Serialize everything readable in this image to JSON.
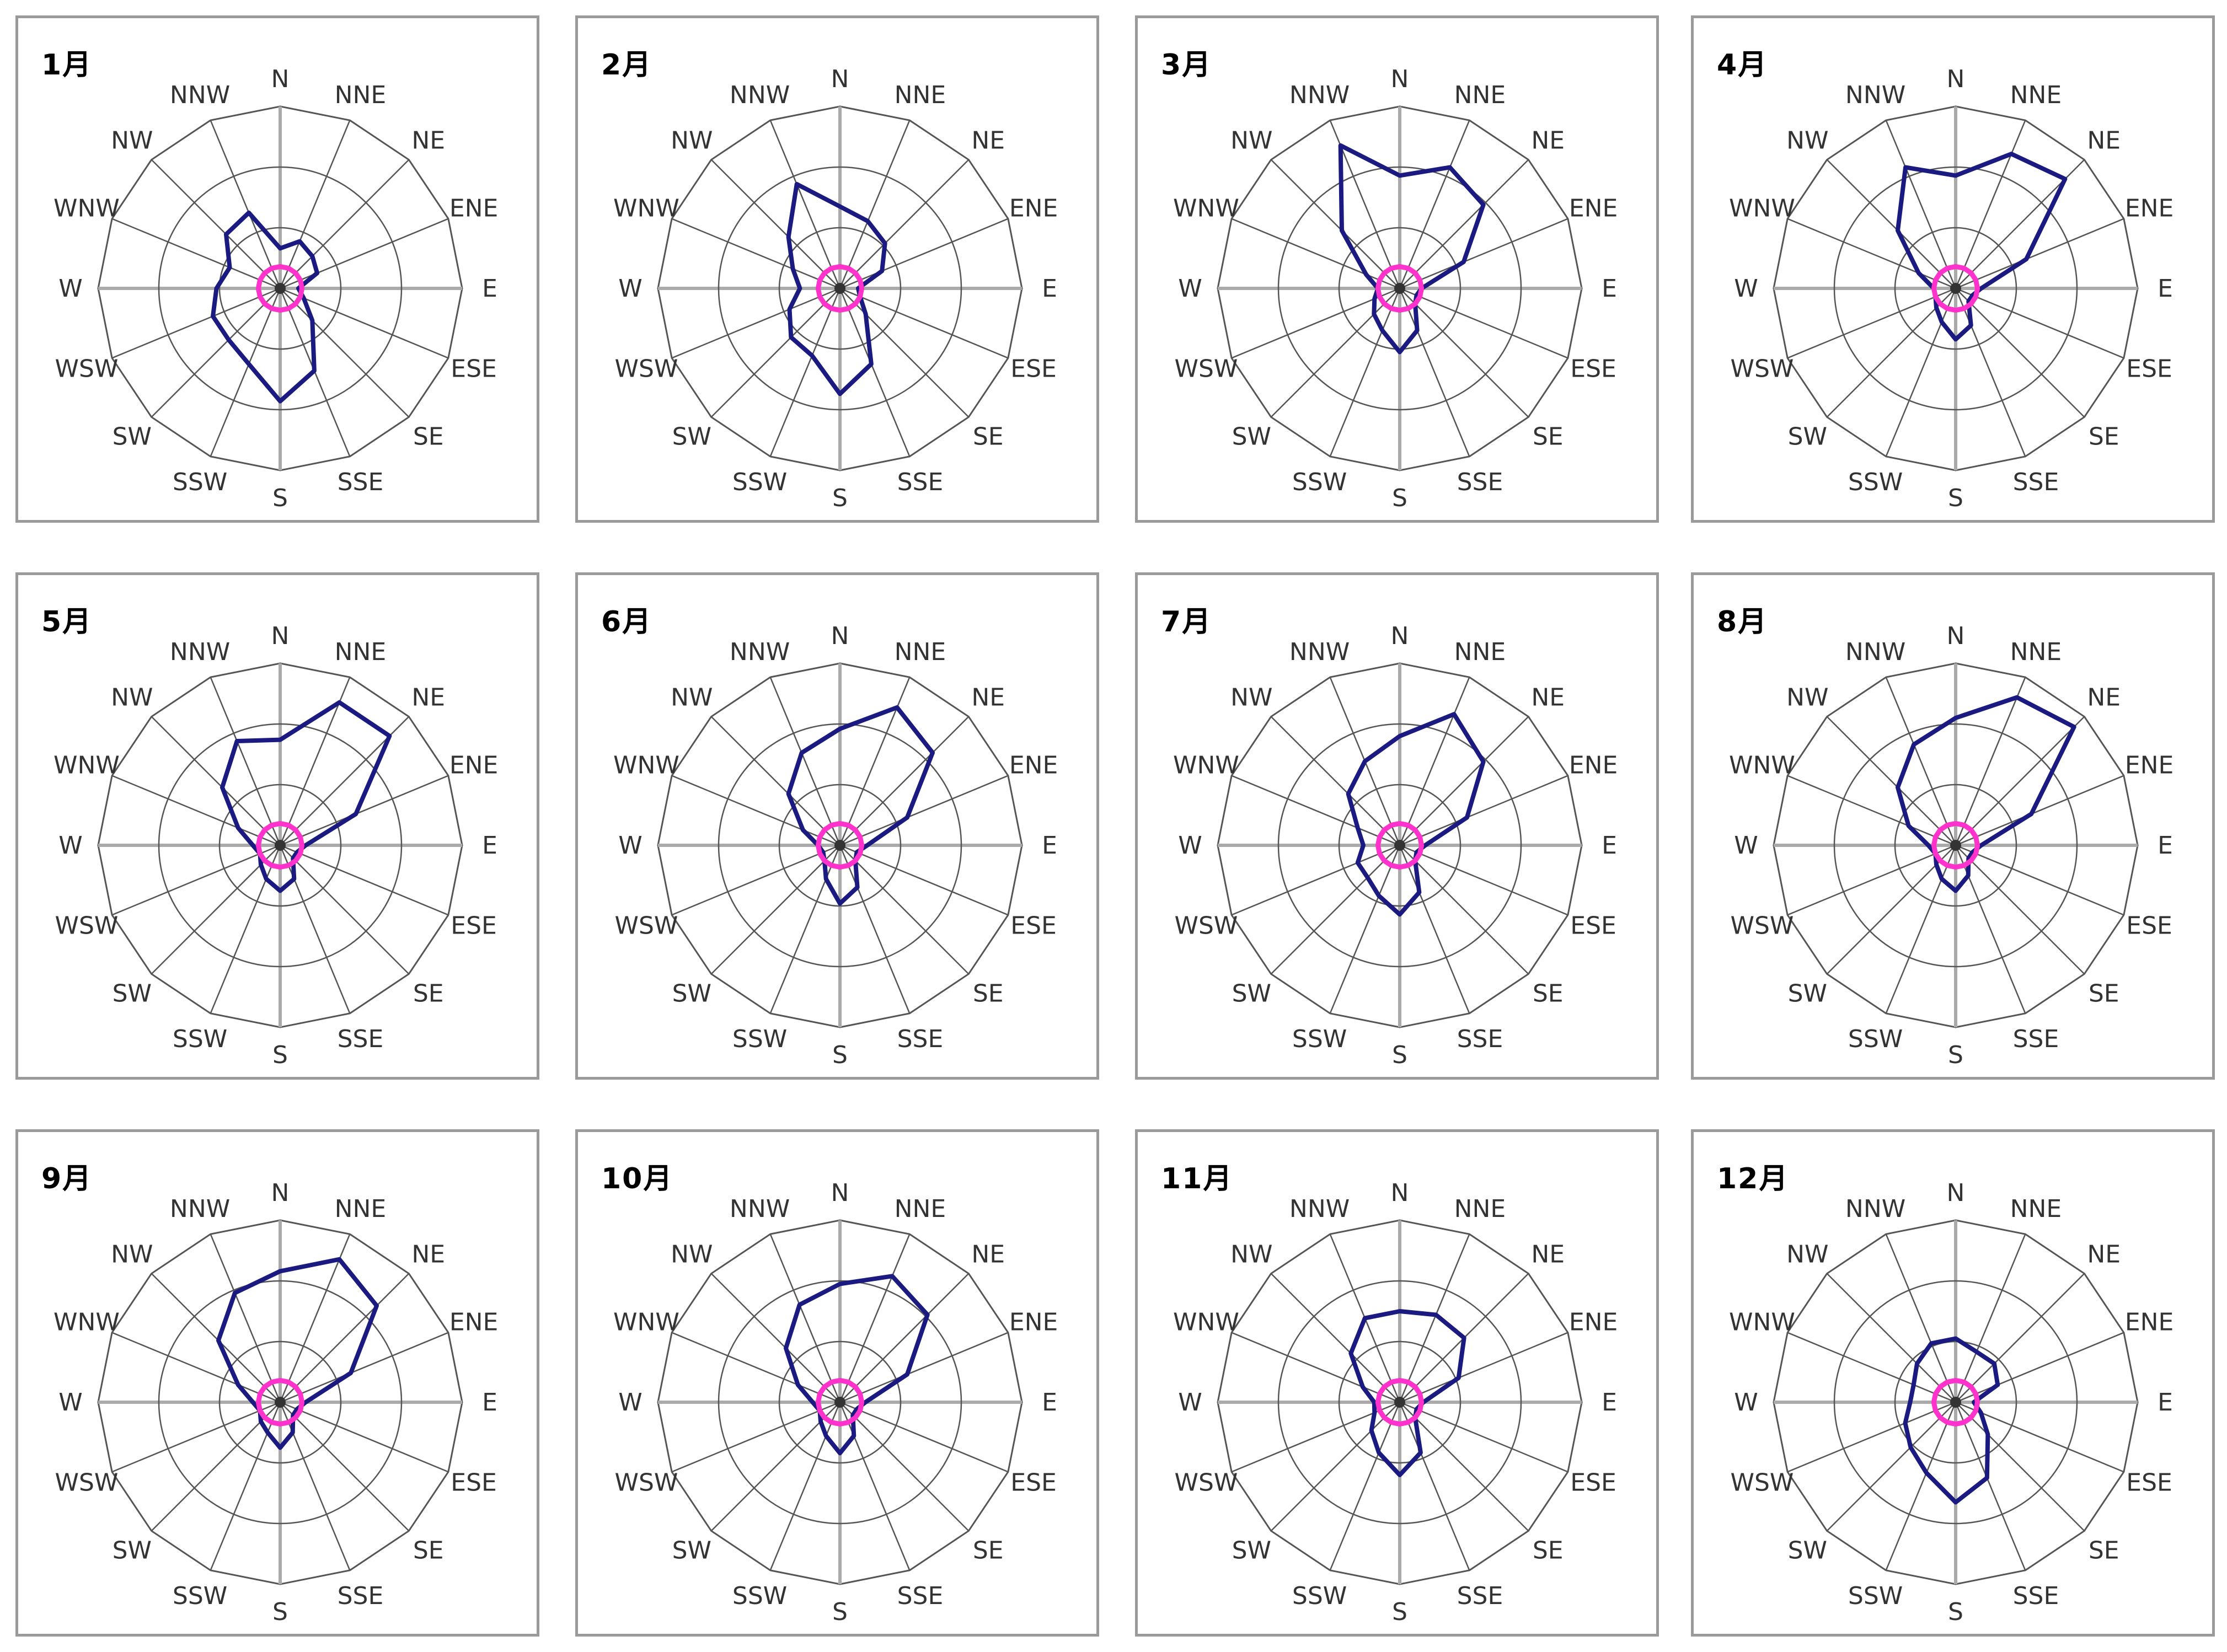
{
  "directions": [
    "N",
    "NNE",
    "NE",
    "ENE",
    "E",
    "ESE",
    "SE",
    "SSE",
    "S",
    "SSW",
    "SW",
    "WSW",
    "W",
    "WNW",
    "NW",
    "NNW"
  ],
  "colors": {
    "frequency_line": "#1a1a80",
    "calm_line": "#ff33cc",
    "grid": "#555555",
    "axis": "#aaaaaa"
  },
  "chart_data": [
    {
      "type": "radar",
      "title": "1月",
      "categories": [
        "N",
        "NNE",
        "NE",
        "ENE",
        "E",
        "ESE",
        "SE",
        "SSE",
        "S",
        "SSW",
        "SW",
        "WSW",
        "W",
        "WNW",
        "NW",
        "NNW"
      ],
      "series": [
        {
          "values": [
            0.22,
            0.28,
            0.25,
            0.22,
            0.1,
            0.14,
            0.25,
            0.49,
            0.62,
            0.45,
            0.4,
            0.4,
            0.35,
            0.3,
            0.42,
            0.45
          ]
        },
        {
          "values": [
            0.12,
            0.12,
            0.12,
            0.12,
            0.12,
            0.12,
            0.12,
            0.12,
            0.12,
            0.12,
            0.12,
            0.12,
            0.12,
            0.12,
            0.12,
            0.12
          ]
        }
      ],
      "rlim": [
        0,
        1
      ],
      "rings": 3
    },
    {
      "type": "radar",
      "title": "2月",
      "categories": [
        "N",
        "NNE",
        "NE",
        "ENE",
        "E",
        "ESE",
        "SE",
        "SSE",
        "S",
        "SSW",
        "SW",
        "WSW",
        "W",
        "WNW",
        "NW",
        "NNW"
      ],
      "series": [
        {
          "values": [
            0.45,
            0.4,
            0.35,
            0.25,
            0.1,
            0.12,
            0.2,
            0.45,
            0.58,
            0.4,
            0.38,
            0.3,
            0.22,
            0.28,
            0.4,
            0.62
          ]
        },
        {
          "values": [
            0.12,
            0.12,
            0.12,
            0.12,
            0.12,
            0.12,
            0.12,
            0.12,
            0.12,
            0.12,
            0.12,
            0.12,
            0.12,
            0.12,
            0.12,
            0.12
          ]
        }
      ],
      "rlim": [
        0,
        1
      ],
      "rings": 3
    },
    {
      "type": "radar",
      "title": "3月",
      "categories": [
        "N",
        "NNE",
        "NE",
        "ENE",
        "E",
        "ESE",
        "SE",
        "SSE",
        "S",
        "SSW",
        "SW",
        "WSW",
        "W",
        "WNW",
        "NW",
        "NNW"
      ],
      "series": [
        {
          "values": [
            0.62,
            0.72,
            0.65,
            0.38,
            0.12,
            0.1,
            0.12,
            0.25,
            0.35,
            0.25,
            0.2,
            0.15,
            0.12,
            0.2,
            0.45,
            0.85
          ]
        },
        {
          "values": [
            0.12,
            0.12,
            0.12,
            0.12,
            0.12,
            0.12,
            0.12,
            0.12,
            0.12,
            0.12,
            0.12,
            0.12,
            0.12,
            0.12,
            0.12,
            0.12
          ]
        }
      ],
      "rlim": [
        0,
        1
      ],
      "rings": 3
    },
    {
      "type": "radar",
      "title": "4月",
      "categories": [
        "N",
        "NNE",
        "NE",
        "ENE",
        "E",
        "ESE",
        "SE",
        "SSE",
        "S",
        "SSW",
        "SW",
        "WSW",
        "W",
        "WNW",
        "NW",
        "NNW"
      ],
      "series": [
        {
          "values": [
            0.62,
            0.8,
            0.85,
            0.42,
            0.14,
            0.1,
            0.1,
            0.22,
            0.28,
            0.2,
            0.15,
            0.12,
            0.12,
            0.22,
            0.45,
            0.72
          ]
        },
        {
          "values": [
            0.12,
            0.12,
            0.12,
            0.12,
            0.12,
            0.12,
            0.12,
            0.12,
            0.12,
            0.12,
            0.12,
            0.12,
            0.12,
            0.12,
            0.12,
            0.12
          ]
        }
      ],
      "rlim": [
        0,
        1
      ],
      "rings": 3
    },
    {
      "type": "radar",
      "title": "5月",
      "categories": [
        "N",
        "NNE",
        "NE",
        "ENE",
        "E",
        "ESE",
        "SE",
        "SSE",
        "S",
        "SSW",
        "SW",
        "WSW",
        "W",
        "WNW",
        "NW",
        "NNW"
      ],
      "series": [
        {
          "values": [
            0.58,
            0.85,
            0.85,
            0.45,
            0.14,
            0.1,
            0.1,
            0.2,
            0.25,
            0.2,
            0.15,
            0.12,
            0.15,
            0.25,
            0.45,
            0.62
          ]
        },
        {
          "values": [
            0.12,
            0.12,
            0.12,
            0.12,
            0.12,
            0.12,
            0.12,
            0.12,
            0.12,
            0.12,
            0.12,
            0.12,
            0.12,
            0.12,
            0.12,
            0.12
          ]
        }
      ],
      "rlim": [
        0,
        1
      ],
      "rings": 3
    },
    {
      "type": "radar",
      "title": "6月",
      "categories": [
        "N",
        "NNE",
        "NE",
        "ENE",
        "E",
        "ESE",
        "SE",
        "SSE",
        "S",
        "SSW",
        "SW",
        "WSW",
        "W",
        "WNW",
        "NW",
        "NNW"
      ],
      "series": [
        {
          "values": [
            0.64,
            0.82,
            0.72,
            0.4,
            0.15,
            0.1,
            0.12,
            0.25,
            0.32,
            0.2,
            0.12,
            0.1,
            0.12,
            0.22,
            0.4,
            0.55
          ]
        },
        {
          "values": [
            0.12,
            0.12,
            0.12,
            0.12,
            0.12,
            0.12,
            0.12,
            0.12,
            0.12,
            0.12,
            0.12,
            0.12,
            0.12,
            0.12,
            0.12,
            0.12
          ]
        }
      ],
      "rlim": [
        0,
        1
      ],
      "rings": 3
    },
    {
      "type": "radar",
      "title": "7月",
      "categories": [
        "N",
        "NNE",
        "NE",
        "ENE",
        "E",
        "ESE",
        "SE",
        "SSE",
        "S",
        "SSW",
        "SW",
        "WSW",
        "W",
        "WNW",
        "NW",
        "NNW"
      ],
      "series": [
        {
          "values": [
            0.6,
            0.78,
            0.65,
            0.4,
            0.14,
            0.1,
            0.12,
            0.28,
            0.38,
            0.3,
            0.25,
            0.25,
            0.2,
            0.25,
            0.4,
            0.5
          ]
        },
        {
          "values": [
            0.12,
            0.12,
            0.12,
            0.12,
            0.12,
            0.12,
            0.12,
            0.12,
            0.12,
            0.12,
            0.12,
            0.12,
            0.12,
            0.12,
            0.12,
            0.12
          ]
        }
      ],
      "rlim": [
        0,
        1
      ],
      "rings": 3
    },
    {
      "type": "radar",
      "title": "8月",
      "categories": [
        "N",
        "NNE",
        "NE",
        "ENE",
        "E",
        "ESE",
        "SE",
        "SSE",
        "S",
        "SSW",
        "SW",
        "WSW",
        "W",
        "WNW",
        "NW",
        "NNW"
      ],
      "series": [
        {
          "values": [
            0.7,
            0.88,
            0.92,
            0.45,
            0.14,
            0.1,
            0.1,
            0.18,
            0.25,
            0.2,
            0.15,
            0.12,
            0.15,
            0.28,
            0.45,
            0.6
          ]
        },
        {
          "values": [
            0.12,
            0.12,
            0.12,
            0.12,
            0.12,
            0.12,
            0.12,
            0.12,
            0.12,
            0.12,
            0.12,
            0.12,
            0.12,
            0.12,
            0.12,
            0.12
          ]
        }
      ],
      "rlim": [
        0,
        1
      ],
      "rings": 3
    },
    {
      "type": "radar",
      "title": "9月",
      "categories": [
        "N",
        "NNE",
        "NE",
        "ENE",
        "E",
        "ESE",
        "SE",
        "SSE",
        "S",
        "SSW",
        "SW",
        "WSW",
        "W",
        "WNW",
        "NW",
        "NNW"
      ],
      "series": [
        {
          "values": [
            0.72,
            0.85,
            0.75,
            0.42,
            0.14,
            0.1,
            0.1,
            0.18,
            0.25,
            0.18,
            0.15,
            0.12,
            0.15,
            0.25,
            0.48,
            0.65
          ]
        },
        {
          "values": [
            0.12,
            0.12,
            0.12,
            0.12,
            0.12,
            0.12,
            0.12,
            0.12,
            0.12,
            0.12,
            0.12,
            0.12,
            0.12,
            0.12,
            0.12,
            0.12
          ]
        }
      ],
      "rlim": [
        0,
        1
      ],
      "rings": 3
    },
    {
      "type": "radar",
      "title": "10月",
      "categories": [
        "N",
        "NNE",
        "NE",
        "ENE",
        "E",
        "ESE",
        "SE",
        "SSE",
        "S",
        "SSW",
        "SW",
        "WSW",
        "W",
        "WNW",
        "NW",
        "NNW"
      ],
      "series": [
        {
          "values": [
            0.65,
            0.75,
            0.68,
            0.4,
            0.14,
            0.1,
            0.1,
            0.2,
            0.28,
            0.2,
            0.15,
            0.12,
            0.15,
            0.25,
            0.42,
            0.58
          ]
        },
        {
          "values": [
            0.12,
            0.12,
            0.12,
            0.12,
            0.12,
            0.12,
            0.12,
            0.12,
            0.12,
            0.12,
            0.12,
            0.12,
            0.12,
            0.12,
            0.12,
            0.12
          ]
        }
      ],
      "rlim": [
        0,
        1
      ],
      "rings": 3
    },
    {
      "type": "radar",
      "title": "11月",
      "categories": [
        "N",
        "NNE",
        "NE",
        "ENE",
        "E",
        "ESE",
        "SE",
        "SSE",
        "S",
        "SSW",
        "SW",
        "WSW",
        "W",
        "WNW",
        "NW",
        "NNW"
      ],
      "series": [
        {
          "values": [
            0.5,
            0.52,
            0.5,
            0.35,
            0.13,
            0.1,
            0.12,
            0.3,
            0.4,
            0.3,
            0.22,
            0.15,
            0.14,
            0.22,
            0.38,
            0.5
          ]
        },
        {
          "values": [
            0.12,
            0.12,
            0.12,
            0.12,
            0.12,
            0.12,
            0.12,
            0.12,
            0.12,
            0.12,
            0.12,
            0.12,
            0.12,
            0.12,
            0.12,
            0.12
          ]
        }
      ],
      "rlim": [
        0,
        1
      ],
      "rings": 3
    },
    {
      "type": "radar",
      "title": "12月",
      "categories": [
        "N",
        "NNE",
        "NE",
        "ENE",
        "E",
        "ESE",
        "SE",
        "SSE",
        "S",
        "SSW",
        "SW",
        "WSW",
        "W",
        "WNW",
        "NW",
        "NNW"
      ],
      "series": [
        {
          "values": [
            0.35,
            0.3,
            0.3,
            0.25,
            0.1,
            0.15,
            0.25,
            0.45,
            0.55,
            0.42,
            0.35,
            0.3,
            0.25,
            0.25,
            0.3,
            0.35
          ]
        },
        {
          "values": [
            0.12,
            0.12,
            0.12,
            0.12,
            0.12,
            0.12,
            0.12,
            0.12,
            0.12,
            0.12,
            0.12,
            0.12,
            0.12,
            0.12,
            0.12,
            0.12
          ]
        }
      ],
      "rlim": [
        0,
        1
      ],
      "rings": 3
    }
  ]
}
